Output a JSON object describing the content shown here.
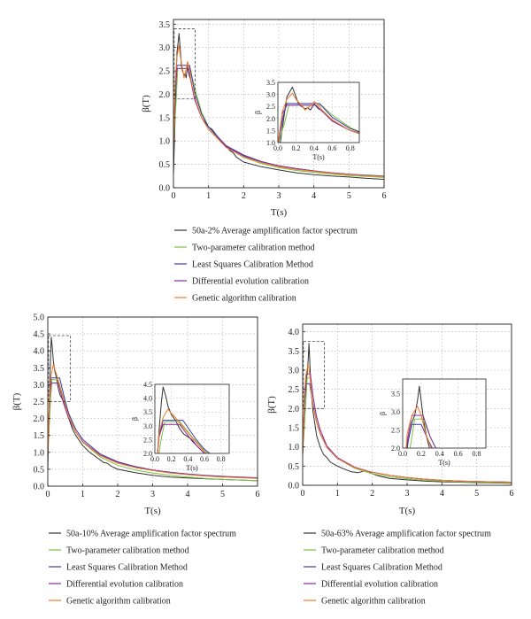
{
  "chart_data": [
    {
      "type": "line",
      "xlabel": "T(s)",
      "ylabel": "β(T)",
      "xlim": [
        0,
        6
      ],
      "ylim": [
        0,
        3.6
      ],
      "xticks": [
        0,
        1,
        2,
        3,
        4,
        5,
        6
      ],
      "yticks": [
        0,
        0.5,
        1.0,
        1.5,
        2.0,
        2.5,
        3.0,
        3.5
      ],
      "ytick_labels": [
        "0.0",
        "0.5",
        "1.0",
        "1.5",
        "2.0",
        "2.5",
        "3.0",
        "3.5"
      ],
      "grid": true,
      "zoom_box": {
        "x": [
          0.02,
          0.62
        ],
        "y": [
          1.9,
          3.4
        ]
      },
      "inset": {
        "xlabel": "T(s)",
        "ylabel": "β",
        "xlim": [
          0,
          0.9
        ],
        "ylim": [
          1.0,
          3.5
        ],
        "xticks": [
          0,
          0.2,
          0.4,
          0.6,
          0.8
        ],
        "xtick_labels": [
          "0.0",
          "0.2",
          "0.4",
          "0.6",
          "0.8"
        ],
        "yticks": [
          1.0,
          1.5,
          2.0,
          2.5,
          3.0,
          3.5
        ],
        "ytick_labels": [
          "1.0",
          "1.5",
          "2.0",
          "2.5",
          "3.0",
          "3.5"
        ]
      },
      "series": [
        {
          "name": "50a-2% Average amplification factor spectrum",
          "color": "#333333",
          "x": [
            0,
            0.02,
            0.05,
            0.08,
            0.1,
            0.13,
            0.16,
            0.2,
            0.23,
            0.26,
            0.3,
            0.33,
            0.36,
            0.4,
            0.45,
            0.5,
            0.55,
            0.6,
            0.7,
            0.8,
            0.9,
            1.0,
            1.1,
            1.2,
            1.3,
            1.4,
            1.5,
            1.6,
            1.7,
            1.8,
            2.0,
            2.5,
            3.0,
            3.5,
            4.0,
            4.5,
            5.0,
            5.5,
            6.0
          ],
          "y": [
            0.3,
            0.8,
            1.6,
            2.4,
            2.9,
            3.1,
            3.3,
            2.9,
            2.6,
            2.5,
            2.4,
            2.45,
            2.35,
            2.6,
            2.4,
            2.3,
            2.1,
            1.9,
            1.7,
            1.5,
            1.4,
            1.3,
            1.25,
            1.15,
            1.05,
            0.95,
            0.9,
            0.8,
            0.75,
            0.65,
            0.55,
            0.45,
            0.38,
            0.32,
            0.28,
            0.25,
            0.23,
            0.2,
            0.18
          ]
        },
        {
          "name": "Two-parameter calibration method",
          "color": "#7fc241",
          "x": [
            0,
            0.08,
            0.12,
            0.48,
            0.6,
            0.8,
            1.0,
            1.5,
            2.0,
            2.5,
            3.0,
            3.5,
            4.0,
            4.5,
            5.0,
            5.5,
            6.0
          ],
          "y": [
            0.9,
            1.9,
            2.55,
            2.55,
            2.15,
            1.62,
            1.3,
            0.87,
            0.65,
            0.52,
            0.43,
            0.37,
            0.33,
            0.29,
            0.26,
            0.24,
            0.22
          ]
        },
        {
          "name": "Least Squares Calibration Method",
          "color": "#3c3ca6",
          "x": [
            0,
            0.06,
            0.1,
            0.46,
            0.6,
            0.8,
            1.0,
            1.5,
            2.0,
            2.5,
            3.0,
            3.5,
            4.0,
            4.5,
            5.0,
            5.5,
            6.0
          ],
          "y": [
            0.9,
            2.1,
            2.62,
            2.62,
            2.05,
            1.58,
            1.3,
            0.9,
            0.7,
            0.56,
            0.47,
            0.41,
            0.36,
            0.32,
            0.29,
            0.27,
            0.25
          ]
        },
        {
          "name": "Differential evolution calibration",
          "color": "#8a2aa0",
          "x": [
            0,
            0.05,
            0.1,
            0.42,
            0.6,
            0.8,
            1.0,
            1.5,
            2.0,
            2.5,
            3.0,
            3.5,
            4.0,
            4.5,
            5.0,
            5.5,
            6.0
          ],
          "y": [
            0.9,
            2.2,
            2.55,
            2.55,
            1.9,
            1.5,
            1.25,
            0.88,
            0.68,
            0.55,
            0.47,
            0.41,
            0.36,
            0.32,
            0.29,
            0.26,
            0.24
          ]
        },
        {
          "name": "Genetic algorithm calibration",
          "color": "#f07a2a",
          "x": [
            0,
            0.05,
            0.1,
            0.16,
            0.2,
            0.26,
            0.3,
            0.35,
            0.4,
            0.44,
            0.5,
            0.6,
            0.8,
            1.0,
            1.5,
            2.0,
            2.5,
            3.0,
            3.5,
            4.0,
            4.5,
            5.0,
            5.5,
            6.0
          ],
          "y": [
            0.9,
            2.3,
            2.8,
            3.05,
            2.8,
            2.55,
            2.35,
            2.5,
            2.7,
            2.6,
            2.3,
            1.95,
            1.5,
            1.25,
            0.86,
            0.66,
            0.54,
            0.45,
            0.39,
            0.35,
            0.31,
            0.28,
            0.26,
            0.24
          ]
        }
      ]
    },
    {
      "type": "line",
      "xlabel": "T(s)",
      "ylabel": "β(T)",
      "xlim": [
        0,
        6
      ],
      "ylim": [
        0,
        5.0
      ],
      "xticks": [
        0,
        1,
        2,
        3,
        4,
        5,
        6
      ],
      "yticks": [
        0,
        0.5,
        1.0,
        1.5,
        2.0,
        2.5,
        3.0,
        3.5,
        4.0,
        4.5,
        5.0
      ],
      "ytick_labels": [
        "0.0",
        "0.5",
        "1.0",
        "1.5",
        "2.0",
        "2.5",
        "3.0",
        "3.5",
        "4.0",
        "4.5",
        "5.0"
      ],
      "grid": true,
      "zoom_box": {
        "x": [
          0.02,
          0.65
        ],
        "y": [
          2.5,
          4.45
        ]
      },
      "inset": {
        "xlabel": "T(s)",
        "ylabel": "β",
        "xlim": [
          0,
          0.9
        ],
        "ylim": [
          2.0,
          4.5
        ],
        "xticks": [
          0,
          0.2,
          0.4,
          0.6,
          0.8
        ],
        "xtick_labels": [
          "0.0",
          "0.2",
          "0.4",
          "0.6",
          "0.8"
        ],
        "yticks": [
          2.0,
          2.5,
          3.0,
          3.5,
          4.0,
          4.5
        ],
        "ytick_labels": [
          "2.0",
          "2.5",
          "3.0",
          "3.5",
          "4.0",
          "4.5"
        ]
      },
      "series": [
        {
          "name": "50a-10% Average amplification factor spectrum",
          "color": "#333333",
          "x": [
            0,
            0.02,
            0.05,
            0.08,
            0.1,
            0.13,
            0.16,
            0.2,
            0.25,
            0.3,
            0.35,
            0.4,
            0.45,
            0.5,
            0.6,
            0.7,
            0.8,
            0.9,
            1.0,
            1.2,
            1.4,
            1.6,
            1.7,
            1.8,
            2.0,
            2.5,
            3.0,
            3.5,
            4.0,
            4.5,
            5.0,
            5.5,
            6.0
          ],
          "y": [
            0.5,
            1.5,
            2.8,
            3.9,
            4.4,
            4.1,
            3.7,
            3.4,
            3.2,
            2.9,
            2.7,
            2.6,
            2.5,
            2.3,
            2.0,
            1.7,
            1.5,
            1.35,
            1.2,
            1.0,
            0.85,
            0.7,
            0.68,
            0.6,
            0.5,
            0.4,
            0.32,
            0.27,
            0.24,
            0.22,
            0.2,
            0.18,
            0.16
          ]
        },
        {
          "name": "Two-parameter calibration method",
          "color": "#7fc241",
          "x": [
            0,
            0.07,
            0.12,
            0.3,
            0.45,
            0.6,
            0.8,
            1.0,
            1.5,
            2.0,
            2.5,
            3.0,
            3.5,
            4.0,
            4.5,
            5.0,
            5.5,
            6.0
          ],
          "y": [
            0.9,
            2.4,
            3.15,
            3.15,
            2.6,
            2.1,
            1.6,
            1.3,
            0.86,
            0.62,
            0.48,
            0.39,
            0.32,
            0.27,
            0.23,
            0.2,
            0.18,
            0.16
          ]
        },
        {
          "name": "Least Squares Calibration Method",
          "color": "#3c3ca6",
          "x": [
            0,
            0.05,
            0.1,
            0.34,
            0.5,
            0.6,
            0.8,
            1.0,
            1.5,
            2.0,
            2.5,
            3.0,
            3.5,
            4.0,
            4.5,
            5.0,
            5.5,
            6.0
          ],
          "y": [
            0.9,
            2.6,
            3.2,
            3.2,
            2.5,
            2.15,
            1.68,
            1.38,
            0.95,
            0.72,
            0.58,
            0.48,
            0.41,
            0.36,
            0.32,
            0.29,
            0.27,
            0.25
          ]
        },
        {
          "name": "Differential evolution calibration",
          "color": "#8a2aa0",
          "x": [
            0,
            0.05,
            0.1,
            0.3,
            0.45,
            0.6,
            0.8,
            1.0,
            1.5,
            2.0,
            2.5,
            3.0,
            3.5,
            4.0,
            4.5,
            5.0,
            5.5,
            6.0
          ],
          "y": [
            0.9,
            2.6,
            3.05,
            3.05,
            2.45,
            2.0,
            1.6,
            1.32,
            0.92,
            0.7,
            0.56,
            0.47,
            0.4,
            0.35,
            0.31,
            0.28,
            0.26,
            0.24
          ]
        },
        {
          "name": "Genetic algorithm calibration",
          "color": "#f07a2a",
          "x": [
            0,
            0.05,
            0.1,
            0.16,
            0.2,
            0.25,
            0.3,
            0.4,
            0.5,
            0.6,
            0.8,
            1.0,
            1.5,
            2.0,
            2.5,
            3.0,
            3.5,
            4.0,
            4.5,
            5.0,
            5.5,
            6.0
          ],
          "y": [
            0.9,
            2.7,
            3.3,
            3.6,
            3.45,
            3.3,
            3.1,
            2.75,
            2.4,
            2.05,
            1.6,
            1.3,
            0.9,
            0.68,
            0.55,
            0.46,
            0.39,
            0.34,
            0.3,
            0.27,
            0.25,
            0.23
          ]
        }
      ]
    },
    {
      "type": "line",
      "xlabel": "T(s)",
      "ylabel": "β(T)",
      "xlim": [
        0,
        6
      ],
      "ylim": [
        0,
        4.2
      ],
      "xticks": [
        0,
        1,
        2,
        3,
        4,
        5,
        6
      ],
      "yticks": [
        0,
        0.5,
        1.0,
        1.5,
        2.0,
        2.5,
        3.0,
        3.5,
        4.0
      ],
      "ytick_labels": [
        "0.0",
        "0.5",
        "1.0",
        "1.5",
        "2.0",
        "2.5",
        "3.0",
        "3.5",
        "4.0"
      ],
      "grid": true,
      "zoom_box": {
        "x": [
          0.02,
          0.62
        ],
        "y": [
          2.0,
          3.75
        ]
      },
      "inset": {
        "xlabel": "T(s)",
        "ylabel": "β",
        "xlim": [
          0,
          0.9
        ],
        "ylim": [
          2.0,
          3.9
        ],
        "xticks": [
          0,
          0.2,
          0.4,
          0.6,
          0.8
        ],
        "xtick_labels": [
          "0.0",
          "0.2",
          "0.4",
          "0.6",
          "0.8"
        ],
        "yticks": [
          2.0,
          2.5,
          3.0,
          3.5
        ],
        "ytick_labels": [
          "2.0",
          "2.5",
          "3.0",
          "3.5"
        ]
      },
      "series": [
        {
          "name": "50a-63% Average amplification factor spectrum",
          "color": "#333333",
          "x": [
            0,
            0.03,
            0.06,
            0.1,
            0.13,
            0.16,
            0.18,
            0.2,
            0.23,
            0.26,
            0.3,
            0.35,
            0.4,
            0.5,
            0.6,
            0.7,
            0.8,
            0.9,
            1.0,
            1.2,
            1.4,
            1.6,
            1.8,
            1.9,
            2.0,
            2.2,
            2.5,
            3.0,
            3.5,
            4.0,
            4.5,
            5.0,
            5.5,
            6.0
          ],
          "y": [
            0.8,
            1.6,
            2.2,
            2.7,
            2.9,
            3.3,
            3.7,
            3.3,
            2.7,
            2.3,
            1.9,
            1.6,
            1.3,
            1.0,
            0.8,
            0.72,
            0.6,
            0.55,
            0.5,
            0.42,
            0.35,
            0.33,
            0.38,
            0.36,
            0.3,
            0.24,
            0.18,
            0.14,
            0.11,
            0.09,
            0.08,
            0.07,
            0.06,
            0.05
          ]
        },
        {
          "name": "Two-parameter calibration method",
          "color": "#7fc241",
          "x": [
            0,
            0.1,
            0.13,
            0.22,
            0.3,
            0.4,
            0.5,
            0.7,
            1.0,
            1.5,
            2.0,
            2.5,
            3.0,
            3.5,
            4.0,
            4.5,
            5.0,
            5.5,
            6.0
          ],
          "y": [
            0.8,
            2.3,
            2.8,
            2.8,
            2.3,
            1.8,
            1.45,
            1.0,
            0.7,
            0.44,
            0.3,
            0.22,
            0.17,
            0.13,
            0.11,
            0.09,
            0.08,
            0.07,
            0.06
          ]
        },
        {
          "name": "Least Squares Calibration Method",
          "color": "#3c3ca6",
          "x": [
            0,
            0.05,
            0.1,
            0.2,
            0.28,
            0.35,
            0.4,
            0.5,
            0.7,
            1.0,
            1.5,
            2.0,
            2.5,
            3.0,
            3.5,
            4.0,
            4.5,
            5.0,
            5.5,
            6.0
          ],
          "y": [
            0.8,
            2.1,
            2.65,
            2.65,
            2.2,
            1.85,
            1.65,
            1.35,
            0.98,
            0.7,
            0.46,
            0.34,
            0.26,
            0.2,
            0.16,
            0.13,
            0.11,
            0.1,
            0.09,
            0.08
          ]
        },
        {
          "name": "Differential evolution calibration",
          "color": "#8a2aa0",
          "x": [
            0,
            0.05,
            0.1,
            0.22,
            0.3,
            0.4,
            0.5,
            0.7,
            1.0,
            1.5,
            2.0,
            2.5,
            3.0,
            3.5,
            4.0,
            4.5,
            5.0,
            5.5,
            6.0
          ],
          "y": [
            0.8,
            2.2,
            2.9,
            2.9,
            2.3,
            1.78,
            1.45,
            1.02,
            0.72,
            0.47,
            0.34,
            0.26,
            0.2,
            0.16,
            0.13,
            0.11,
            0.1,
            0.09,
            0.08
          ]
        },
        {
          "name": "Genetic algorithm calibration",
          "color": "#f07a2a",
          "x": [
            0,
            0.05,
            0.1,
            0.16,
            0.2,
            0.25,
            0.3,
            0.4,
            0.5,
            0.7,
            1.0,
            1.5,
            2.0,
            2.5,
            3.0,
            3.5,
            4.0,
            4.5,
            5.0,
            5.5,
            6.0
          ],
          "y": [
            0.8,
            2.4,
            2.9,
            3.15,
            2.9,
            2.4,
            2.05,
            1.65,
            1.35,
            0.98,
            0.7,
            0.46,
            0.34,
            0.26,
            0.2,
            0.16,
            0.13,
            0.11,
            0.1,
            0.09,
            0.08
          ]
        }
      ]
    }
  ]
}
